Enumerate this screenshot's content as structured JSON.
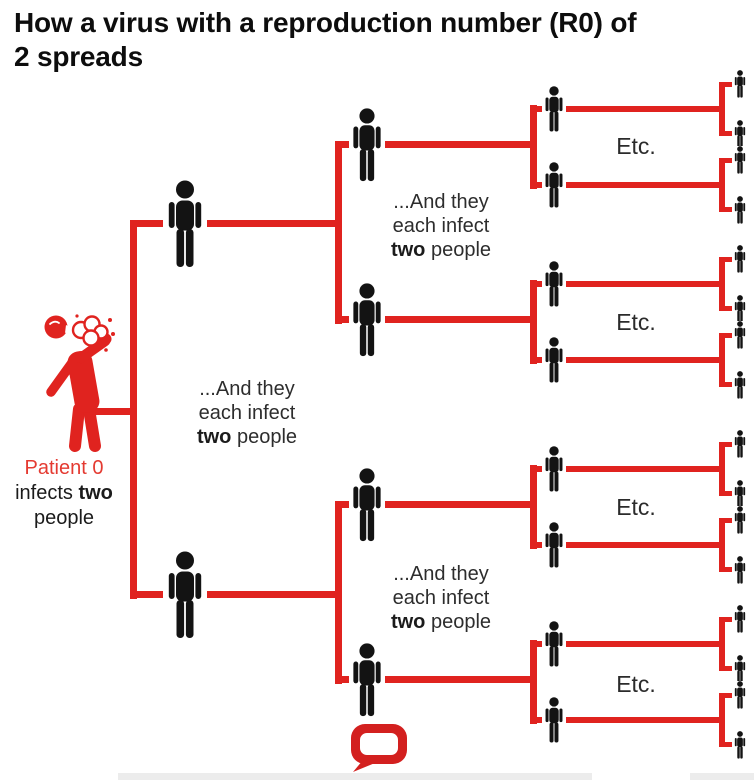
{
  "title": {
    "line1": "How a virus with a reproduction number (R0) of",
    "line2": "2 spreads"
  },
  "patient_caption": {
    "line1": "Patient 0",
    "line2_pre": "infects ",
    "line2_bold": "two",
    "line3": "people"
  },
  "infect_note": {
    "line1": "...And they",
    "line2": "each infect",
    "line3_bold": "two",
    "line3_rest": " people"
  },
  "etc_label": "Etc.",
  "tree": {
    "generation_counts": [
      1,
      2,
      4,
      8,
      16
    ],
    "reproduction_number": "2"
  },
  "colors": {
    "red": "#e0231f",
    "icon_black": "#131313",
    "text_dark": "#2d2d2d",
    "patient_label_red": "#e43a31",
    "logo_red": "#d3201f"
  },
  "icons": {
    "patient_zero": "sneezing-person-icon",
    "person": "person-icon",
    "logo": "speech-bubble-logo"
  }
}
